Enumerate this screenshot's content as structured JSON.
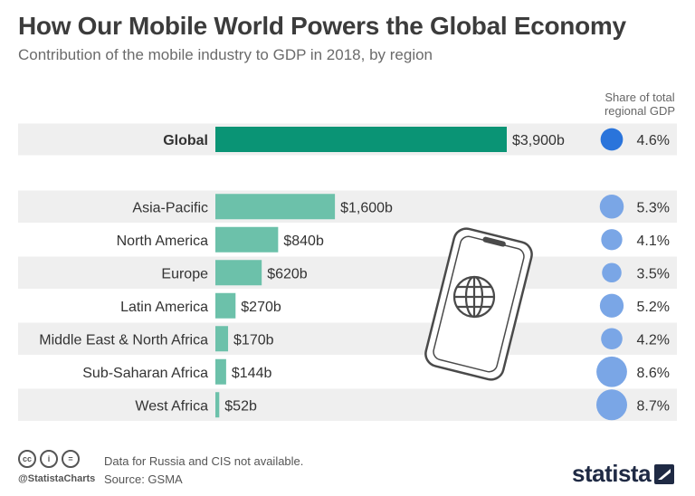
{
  "header": {
    "title": "How Our Mobile World Powers the Global Economy",
    "subtitle": "Contribution of the mobile industry to GDP in 2018, by region",
    "share_heading": "Share of total regional GDP"
  },
  "chart_data": {
    "type": "bar",
    "title": "How Our Mobile World Powers the Global Economy",
    "subtitle": "Contribution of the mobile industry to GDP in 2018, by region",
    "orientation": "horizontal",
    "value_unit": "billion USD",
    "categories": [
      "Global",
      "Asia-Pacific",
      "North America",
      "Europe",
      "Latin America",
      "Middle East & North Africa",
      "Sub-Saharan Africa",
      "West Africa"
    ],
    "values": [
      3900,
      1600,
      840,
      620,
      270,
      170,
      144,
      52
    ],
    "value_labels": [
      "$3,900b",
      "$1,600b",
      "$840b",
      "$620b",
      "$270b",
      "$170b",
      "$144b",
      "$52b"
    ],
    "share_of_gdp_percent": [
      4.6,
      5.3,
      4.1,
      3.5,
      5.2,
      4.2,
      8.6,
      8.7
    ],
    "share_labels": [
      "4.6%",
      "5.3%",
      "4.1%",
      "3.5%",
      "5.2%",
      "4.2%",
      "8.6%",
      "8.7%"
    ],
    "xlim": [
      0,
      3900
    ],
    "colors": {
      "global_bar": "#0a9475",
      "region_bar": "#6cc1aa",
      "global_bubble": "#2a74db",
      "region_bubble": "#7aa6e6",
      "row_band": "#efefef"
    }
  },
  "footer": {
    "note": "Data for Russia and CIS not available.",
    "source": "Source: GSMA",
    "handle": "@StatistaCharts",
    "license_icons": [
      "cc",
      "i",
      "="
    ],
    "logo_text": "statista"
  }
}
